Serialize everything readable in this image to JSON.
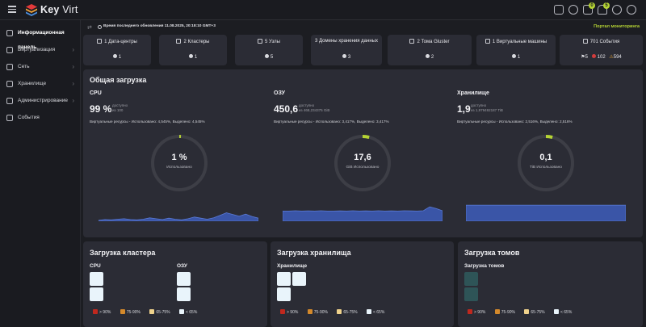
{
  "app": {
    "brand_bold": "Key",
    "brand_rest": " Virt"
  },
  "topbar": {
    "icons": [
      "bookmark-icon",
      "history-icon",
      "tasks-icon",
      "notifications-icon",
      "help-icon",
      "user-icon"
    ],
    "tasks_badge": "0",
    "notifications_badge": "5"
  },
  "sidebar": {
    "items": [
      {
        "label": "Информационная панель",
        "icon": "dashboard-icon",
        "active": true
      },
      {
        "label": "Виртуализация",
        "icon": "virtualization-icon"
      },
      {
        "label": "Сеть",
        "icon": "network-icon"
      },
      {
        "label": "Хранилище",
        "icon": "storage-icon"
      },
      {
        "label": "Администрирование",
        "icon": "admin-icon"
      },
      {
        "label": "События",
        "icon": "events-icon"
      }
    ]
  },
  "infobar": {
    "updated": "Время последнего обновления 11.08.2025, 20:18:10 GMT+3",
    "portal": "Портал мониторинга"
  },
  "summary": [
    {
      "title": "1 Дата-центры",
      "status": "1"
    },
    {
      "title": "2 Кластеры",
      "status": "1"
    },
    {
      "title": "5 Узлы",
      "status": "5"
    },
    {
      "title": "3 Домены хранения данных",
      "status": "3"
    },
    {
      "title": "2 Тома Gluster",
      "status": "2"
    },
    {
      "title": "1 Виртуальные машины",
      "status": "1"
    },
    {
      "title": "701 События",
      "flag": "5",
      "errors": "102",
      "warnings": "594"
    }
  ],
  "overall": {
    "title": "Общая загрузка",
    "cpu": {
      "name": "CPU",
      "big": "99 %",
      "small1": "доступно",
      "small2": "из 100",
      "virt": "Виртуальные ресурсы - Использовано: 4,545%, Выделено: 4,545%",
      "gauge_value": "1 %",
      "gauge_label": "Использовано",
      "gauge_fraction": 0.01,
      "spark": [
        0.05,
        0.1,
        0.08,
        0.12,
        0.15,
        0.1,
        0.08,
        0.12,
        0.2,
        0.15,
        0.1,
        0.18,
        0.12,
        0.08,
        0.15,
        0.25,
        0.18,
        0.12,
        0.2,
        0.35,
        0.5,
        0.4,
        0.3,
        0.42,
        0.28,
        0.18
      ]
    },
    "ram": {
      "name": "ОЗУ",
      "big": "450,6",
      "small1": "доступно",
      "small2": "из 468,234375 GiB",
      "virt": "Виртуальные ресурсы - Использовано: 3,417%, Выделено: 3,417%",
      "gauge_value": "17,6",
      "gauge_label": "GiB Использовано",
      "gauge_fraction": 0.04,
      "spark": [
        0.6,
        0.6,
        0.62,
        0.6,
        0.61,
        0.6,
        0.62,
        0.6,
        0.6,
        0.61,
        0.6,
        0.62,
        0.6,
        0.61,
        0.6,
        0.62,
        0.6,
        0.61,
        0.6,
        0.62,
        0.61,
        0.6,
        0.62,
        0.85,
        0.75,
        0.62
      ]
    },
    "storage": {
      "name": "Хранилище",
      "big": "1,9",
      "small1": "доступно",
      "small2": "из 1,979492187 TiB",
      "virt": "Виртуальные ресурсы - Использовано: 2,516%, Выделено: 2,516%",
      "gauge_value": "0,1",
      "gauge_label": "TiB Использовано",
      "gauge_fraction": 0.04,
      "spark": [
        0.95,
        0.95,
        0.95,
        0.95,
        0.95,
        0.95,
        0.95,
        0.95,
        0.95,
        0.95,
        0.95,
        0.95,
        0.95,
        0.95,
        0.95,
        0.95,
        0.95,
        0.95,
        0.95,
        0.95
      ]
    }
  },
  "cluster": {
    "title": "Загрузка кластера",
    "cpu_label": "CPU",
    "ram_label": "ОЗУ"
  },
  "storage_load": {
    "title": "Загрузка хранилища",
    "label": "Хранилище"
  },
  "volumes": {
    "title": "Загрузка томов",
    "label": "Загрузка томов"
  },
  "legend": [
    {
      "label": "> 90%",
      "color": "#c0281e"
    },
    {
      "label": "75-90%",
      "color": "#d4892b"
    },
    {
      "label": "65-75%",
      "color": "#efd28c"
    },
    {
      "label": "< 65%",
      "color": "#e9f4fb"
    }
  ],
  "colors": {
    "accent": "#b5d334",
    "spark_fill": "#3a55a7",
    "spark_line": "#5a7ad6"
  }
}
